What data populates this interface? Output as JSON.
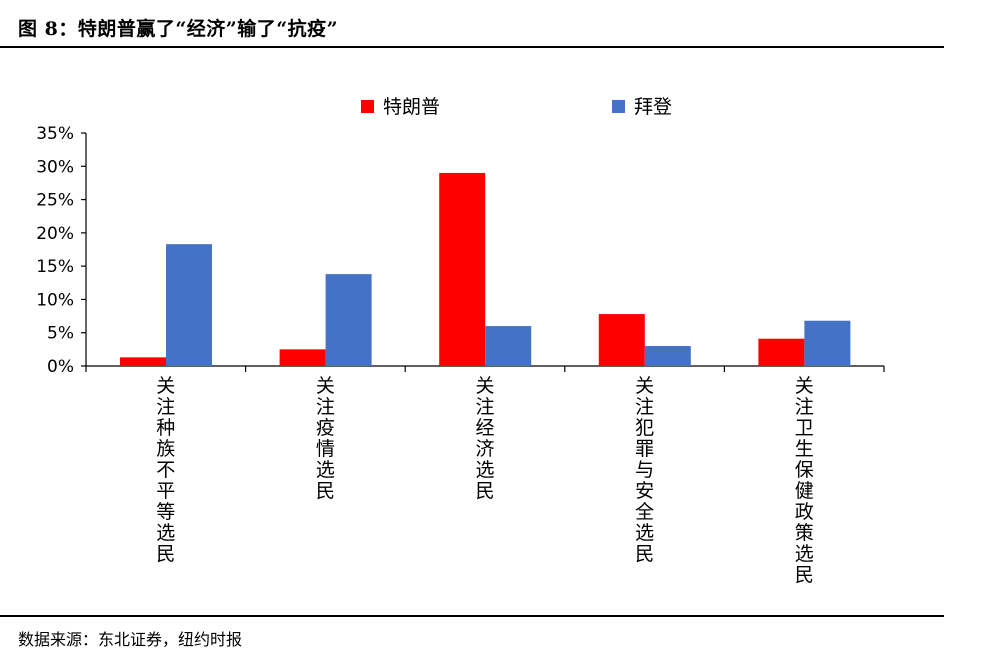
{
  "figure": {
    "title": "图 8：特朗普赢了“经济”输了“抗疫”",
    "source": "数据来源：东北证券，纽约时报"
  },
  "chart_data": {
    "type": "bar",
    "categories": [
      "关注种族不平等选民",
      "关注疫情选民",
      "关注经济选民",
      "关注犯罪与安全选民",
      "关注卫生保健政策选民"
    ],
    "series": [
      {
        "name": "特朗普",
        "color": "#ff0000",
        "values": [
          1.3,
          2.5,
          29.0,
          7.8,
          4.1
        ]
      },
      {
        "name": "拜登",
        "color": "#4472c4",
        "values": [
          18.3,
          13.8,
          6.0,
          3.0,
          6.8
        ]
      }
    ],
    "yticks": [
      "0%",
      "5%",
      "10%",
      "15%",
      "20%",
      "25%",
      "30%",
      "35%"
    ],
    "ylim": [
      0,
      35
    ],
    "legend_position": "top-center",
    "grid": false
  }
}
